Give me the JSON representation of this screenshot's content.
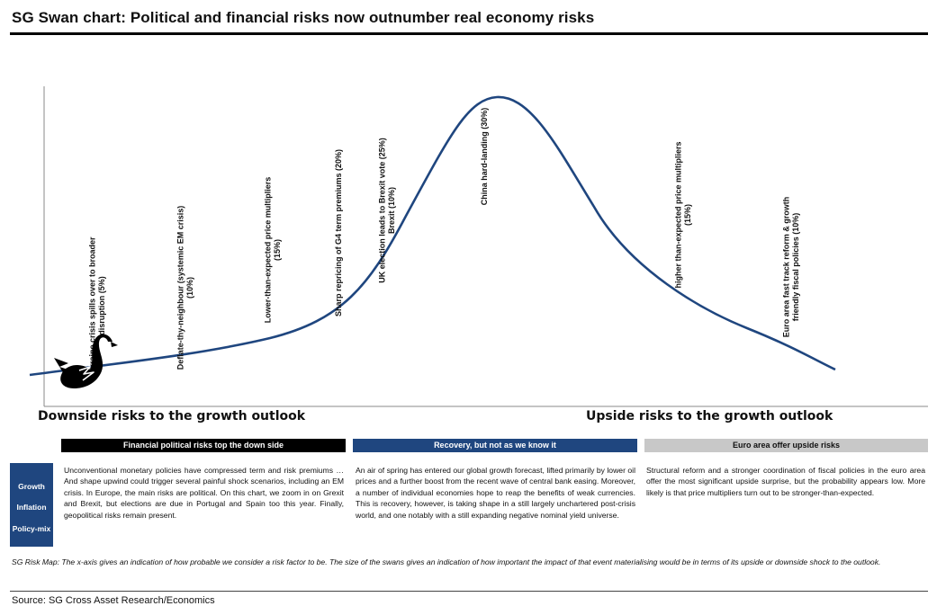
{
  "page": {
    "title": "SG Swan chart: Political and financial risks now outnumber real economy risks",
    "source": "Source: SG Cross Asset Research/Economics",
    "note": "SG Risk Map: The x-axis gives an indication of how probable we consider a risk factor to be. The size of the swans gives an indication of how important the impact of that event materialising would be in terms of its upside or downside shock to the outlook."
  },
  "chart_data": {
    "type": "line",
    "axis_left_label": "Downside risks to the growth outlook",
    "axis_right_label": "Upside risks to the growth outlook",
    "curve_color": "#1f467f",
    "annotations": [
      {
        "lines": [
          "Ukraine crisis spills over to broader",
          "disruption (5%)"
        ]
      },
      {
        "lines": [
          "Deflate-thy-neighbour (systemic EM crisis)",
          "(10%)"
        ]
      },
      {
        "lines": [
          "Lower-than-expected price multipliers",
          "(15%)"
        ]
      },
      {
        "lines": [
          "Sharp repricing of G4 term premiums (20%)"
        ]
      },
      {
        "lines": [
          "UK election leads to Brexit vote (25%)",
          "Brexit (10%)"
        ]
      },
      {
        "lines": [
          "China hard-landing (30%)"
        ]
      },
      {
        "lines": [
          "higher than-expected price multipliers",
          "(15%)"
        ]
      },
      {
        "lines": [
          "Euro area fast track reform & growth",
          "friendly fiscal policies (10%)"
        ]
      }
    ]
  },
  "panels": {
    "left": {
      "heading": "Financial political  risks top the down side",
      "text": "Unconventional monetary policies have compressed term and risk premiums … And shape upwind could trigger several painful shock scenarios, including an EM crisis. In Europe, the main risks are political. On this chart, we zoom in on Grexit and Brexit, but elections are due in Portugal and Spain too this year. Finally, geopolitical risks remain present."
    },
    "middle": {
      "heading": "Recovery, but not as we know it",
      "text": "An air of spring has entered our global growth forecast, lifted primarily by lower oil prices and a further boost from the recent wave of central bank easing. Moreover, a number of individual economies hope to reap the benefits of weak currencies. This is recovery, however, is taking shape in a still largely unchartered post-crisis world, and one notably with a still expanding negative nominal yield universe."
    },
    "right": {
      "heading": "Euro area offer upside risks",
      "text": "Structural reform and a stronger coordination of fiscal policies in the euro area offer the most significant upside surprise, but the probability appears low. More likely is that price multipliers turn out to be stronger-than-expected."
    }
  },
  "sidebar": {
    "items": [
      "Growth",
      "Inflation",
      "Policy-mix"
    ],
    "color": "#1f467f"
  }
}
